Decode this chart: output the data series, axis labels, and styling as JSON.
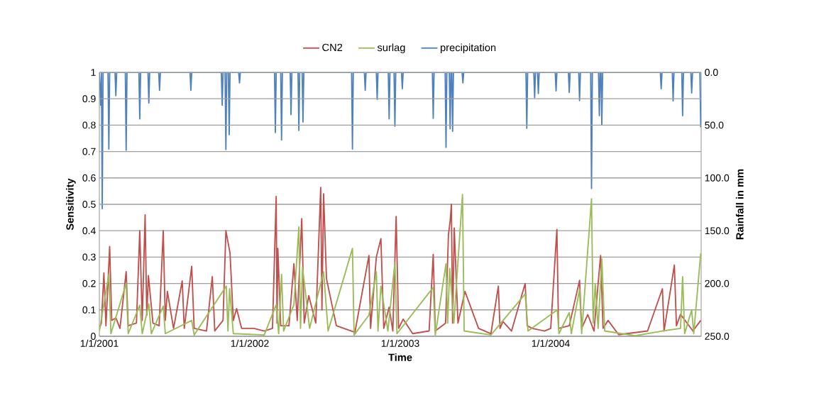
{
  "chart_data": {
    "type": "line",
    "xlabel": "Time",
    "ylabel": "Sensitivity",
    "y2label": "Rainfall in mm",
    "xlim": [
      "2001-01-01",
      "2004-12-31"
    ],
    "xticks": [
      {
        "value": "2001-01-01",
        "label": "1/1/2001"
      },
      {
        "value": "2002-01-01",
        "label": "1/1/2002"
      },
      {
        "value": "2003-01-01",
        "label": "1/1/2003"
      },
      {
        "value": "2004-01-01",
        "label": "1/1/2004"
      }
    ],
    "ylim": [
      0,
      1
    ],
    "yticks": [
      0,
      0.1,
      0.2,
      0.3,
      0.4,
      0.5,
      0.6,
      0.7,
      0.8,
      0.9,
      1
    ],
    "y2lim": [
      250,
      0
    ],
    "y2ticks": [
      {
        "value": 0,
        "label": "0.0"
      },
      {
        "value": 50,
        "label": "50.0"
      },
      {
        "value": 100,
        "label": "100.0"
      },
      {
        "value": 150,
        "label": "150.0"
      },
      {
        "value": 200,
        "label": "200.0"
      },
      {
        "value": 250,
        "label": "250.0"
      }
    ],
    "grid": "y",
    "legend": "top",
    "marker": "none",
    "line_style": "solid",
    "series": [
      {
        "name": "CN2",
        "color": "#c0504d",
        "x": [
          "2001-01-01",
          "2001-01-06",
          "2001-01-12",
          "2001-01-17",
          "2001-01-26",
          "2001-01-31",
          "2001-02-10",
          "2001-02-20",
          "2001-03-07",
          "2001-03-12",
          "2001-04-01",
          "2001-04-09",
          "2001-04-15",
          "2001-04-22",
          "2001-04-26",
          "2001-04-30",
          "2001-05-11",
          "2001-05-26",
          "2001-06-05",
          "2001-06-10",
          "2001-06-15",
          "2001-06-30",
          "2001-07-21",
          "2001-07-26",
          "2001-08-13",
          "2001-08-19",
          "2001-09-18",
          "2001-10-02",
          "2001-10-08",
          "2001-10-28",
          "2001-11-04",
          "2001-11-09",
          "2001-11-14",
          "2001-11-22",
          "2001-11-30",
          "2001-12-12",
          "2002-01-11",
          "2002-02-05",
          "2002-02-25",
          "2002-03-06",
          "2002-03-08",
          "2002-03-10",
          "2002-03-17",
          "2002-04-06",
          "2002-04-18",
          "2002-04-26",
          "2002-05-07",
          "2002-05-13",
          "2002-05-24",
          "2002-06-10",
          "2002-06-22",
          "2002-06-25",
          "2002-06-29",
          "2002-07-06",
          "2002-07-30",
          "2002-09-13",
          "2002-10-17",
          "2002-10-21",
          "2002-11-04",
          "2002-11-08",
          "2002-11-15",
          "2002-11-22",
          "2002-12-05",
          "2002-12-14",
          "2002-12-22",
          "2002-12-28",
          "2003-01-08",
          "2003-01-31",
          "2003-03-12",
          "2003-03-22",
          "2003-03-27",
          "2003-04-21",
          "2003-04-28",
          "2003-05-02",
          "2003-05-05",
          "2003-05-08",
          "2003-05-12",
          "2003-05-21",
          "2003-06-07",
          "2003-07-10",
          "2003-08-09",
          "2003-08-27",
          "2003-08-31",
          "2003-09-07",
          "2003-09-28",
          "2003-10-31",
          "2003-11-05",
          "2003-11-17",
          "2003-12-17",
          "2004-01-01",
          "2004-01-16",
          "2004-01-20",
          "2004-02-15",
          "2004-03-11",
          "2004-03-16",
          "2004-03-31",
          "2004-04-15",
          "2004-05-01",
          "2004-05-07",
          "2004-05-19",
          "2004-06-14",
          "2004-08-23",
          "2004-09-28",
          "2004-10-02",
          "2004-10-27",
          "2004-11-01",
          "2004-11-11",
          "2004-12-11",
          "2004-12-30"
        ],
        "values": [
          0.03,
          0.05,
          0.24,
          0.04,
          0.34,
          0.06,
          0.07,
          0.03,
          0.245,
          0.04,
          0.05,
          0.4,
          0.06,
          0.46,
          0.08,
          0.23,
          0.05,
          0.04,
          0.4,
          0.06,
          0.17,
          0.03,
          0.21,
          0.03,
          0.265,
          0.03,
          0.02,
          0.226,
          0.02,
          0.06,
          0.4,
          null,
          0.315,
          0.06,
          0.105,
          0.03,
          0.03,
          0.02,
          0.03,
          0.53,
          0.05,
          0.333,
          0.04,
          0.04,
          0.275,
          0.06,
          0.446,
          0.05,
          0.154,
          0.05,
          0.564,
          0.1,
          0.54,
          0.218,
          0.04,
          0.015,
          0.306,
          0.03,
          0.3,
          null,
          0.37,
          0.03,
          0.11,
          0.02,
          0.454,
          0.03,
          0.065,
          0.01,
          0.02,
          0.31,
          0.02,
          0.05,
          0.387,
          0.436,
          0.5,
          0.05,
          0.41,
          0.05,
          0.17,
          0.03,
          0.01,
          0.19,
          0.03,
          0.056,
          0.02,
          0.2,
          0.04,
          0.03,
          0.02,
          0.03,
          0.405,
          0.03,
          0.04,
          0.212,
          0.03,
          0.082,
          0.02,
          0.306,
          0.03,
          0.06,
          0.006,
          0.02,
          0.18,
          0.02,
          0.27,
          0.04,
          0.083,
          0.02,
          0.06
        ]
      },
      {
        "name": "surlag",
        "color": "#9bbb59",
        "x": [
          "2001-01-01",
          "2001-01-24",
          "2001-01-29",
          "2001-03-07",
          "2001-03-12",
          "2001-04-09",
          "2001-04-15",
          "2001-05-01",
          "2001-05-07",
          "2001-06-05",
          "2001-06-10",
          "2001-08-13",
          "2001-08-19",
          "2001-11-05",
          "2001-11-09",
          "2001-11-13",
          "2001-11-22",
          "2002-02-05",
          "2002-03-06",
          "2002-03-12",
          "2002-03-19",
          "2002-03-24",
          "2002-04-18",
          "2002-04-30",
          "2002-05-04",
          "2002-05-09",
          "2002-05-26",
          "2002-06-29",
          "2002-07-10",
          "2002-09-07",
          "2002-09-11",
          "2002-10-17",
          "2002-11-04",
          "2002-11-08",
          "2002-11-15",
          "2002-12-02",
          "2002-12-19",
          "2002-12-24",
          "2003-03-22",
          "2003-03-27",
          "2003-04-22",
          "2003-04-26",
          "2003-05-01",
          "2003-05-11",
          "2003-06-01",
          "2003-06-05",
          "2003-08-09",
          "2003-10-31",
          "2003-11-07",
          "2004-01-17",
          "2004-01-21",
          "2004-02-15",
          "2004-02-20",
          "2004-03-11",
          "2004-03-16",
          "2004-04-09",
          "2004-04-13",
          "2004-04-18",
          "2004-04-25",
          "2004-05-04",
          "2004-05-11",
          "2004-07-24",
          "2004-09-28",
          "2004-11-11",
          "2004-11-16",
          "2004-11-21",
          "2004-12-08",
          "2004-12-13",
          "2004-12-30"
        ],
        "values": [
          0.02,
          0.235,
          0.01,
          0.2,
          0.01,
          0.118,
          0.01,
          0.123,
          0.01,
          0.114,
          0.01,
          0.06,
          0.005,
          0.19,
          0.02,
          0.18,
          0.01,
          0.005,
          0.12,
          0.01,
          0.235,
          0.02,
          0.12,
          0.414,
          0.03,
          0.26,
          0.03,
          0.244,
          0.02,
          0.333,
          0.005,
          0.08,
          0.244,
          0.02,
          0.19,
          0.02,
          0.28,
          0.01,
          0.185,
          0.005,
          0.275,
          0.05,
          0.257,
          0.05,
          0.537,
          0.02,
          0.005,
          0.16,
          0.02,
          0.1,
          0.01,
          0.09,
          0.01,
          0.177,
          0.01,
          0.521,
          0.05,
          0.2,
          0.03,
          0.293,
          0.02,
          0.002,
          0.02,
          0.03,
          0.226,
          0.01,
          0.1,
          0.01,
          0.315
        ]
      },
      {
        "name": "precipitation",
        "color": "#4f81bd",
        "axis": "y2",
        "x": [
          "2001-01-01",
          "2001-01-04",
          "2001-01-06",
          "2001-01-08",
          "2001-01-10",
          "2001-01-22",
          "2001-01-24",
          "2001-01-26",
          "2001-02-08",
          "2001-02-10",
          "2001-02-12",
          "2001-03-05",
          "2001-03-07",
          "2001-03-09",
          "2001-04-07",
          "2001-04-09",
          "2001-04-11",
          "2001-04-29",
          "2001-05-01",
          "2001-05-03",
          "2001-05-25",
          "2001-05-27",
          "2001-05-29",
          "2001-08-09",
          "2001-08-11",
          "2001-08-13",
          "2001-10-24",
          "2001-10-26",
          "2001-10-28",
          "2001-11-02",
          "2001-11-04",
          "2001-11-06",
          "2001-11-10",
          "2001-11-12",
          "2001-11-14",
          "2001-12-05",
          "2001-12-07",
          "2001-12-09",
          "2002-03-02",
          "2002-03-04",
          "2002-03-06",
          "2002-03-17",
          "2002-03-19",
          "2002-03-21",
          "2002-04-09",
          "2002-04-11",
          "2002-04-13",
          "2002-04-28",
          "2002-04-30",
          "2002-05-02",
          "2002-05-08",
          "2002-05-10",
          "2002-05-12",
          "2002-09-05",
          "2002-09-07",
          "2002-09-09",
          "2002-10-06",
          "2002-10-08",
          "2002-10-10",
          "2002-11-04",
          "2002-11-06",
          "2002-11-08",
          "2002-12-03",
          "2002-12-05",
          "2002-12-07",
          "2002-12-17",
          "2002-12-19",
          "2002-12-21",
          "2003-01-04",
          "2003-01-06",
          "2003-01-08",
          "2003-03-20",
          "2003-03-22",
          "2003-03-24",
          "2003-04-20",
          "2003-04-22",
          "2003-04-24",
          "2003-04-30",
          "2003-05-02",
          "2003-05-04",
          "2003-05-06",
          "2003-05-08",
          "2003-05-10",
          "2003-05-31",
          "2003-06-02",
          "2003-06-04",
          "2003-11-02",
          "2003-11-04",
          "2003-11-06",
          "2003-11-21",
          "2003-11-23",
          "2003-11-25",
          "2003-11-30",
          "2003-12-02",
          "2003-12-04",
          "2004-01-12",
          "2004-01-14",
          "2004-01-16",
          "2004-02-13",
          "2004-02-15",
          "2004-02-17",
          "2004-03-09",
          "2004-03-11",
          "2004-03-13",
          "2004-04-07",
          "2004-04-09",
          "2004-04-11",
          "2004-04-26",
          "2004-04-28",
          "2004-04-30",
          "2004-05-02",
          "2004-05-04",
          "2004-05-06",
          "2004-09-23",
          "2004-09-25",
          "2004-09-27",
          "2004-10-22",
          "2004-10-24",
          "2004-10-26",
          "2004-11-14",
          "2004-11-16",
          "2004-11-18",
          "2004-12-06",
          "2004-12-08",
          "2004-12-10",
          "2004-12-28",
          "2004-12-30"
        ],
        "values": [
          0,
          31,
          0,
          129,
          0,
          0,
          72.6,
          0,
          0,
          22,
          0,
          0,
          73.7,
          0,
          0,
          44,
          0,
          0,
          29,
          0,
          0,
          17,
          0,
          0,
          17,
          0,
          0,
          31,
          0,
          0,
          73,
          0,
          0,
          59,
          0,
          0,
          10,
          0,
          0,
          57,
          0,
          0,
          64,
          0,
          0,
          40,
          0,
          0,
          55,
          0,
          0,
          47,
          0,
          0,
          72.6,
          0,
          0,
          17,
          0,
          0,
          25.5,
          0,
          0,
          44,
          0,
          0,
          51,
          0,
          0,
          15.5,
          0,
          0,
          43.5,
          0,
          0,
          71,
          0,
          0,
          53.5,
          0,
          0,
          55.8,
          0,
          0,
          10,
          0,
          0,
          53,
          0,
          0,
          24,
          0,
          0,
          20,
          0,
          0,
          17.5,
          0,
          0,
          19,
          0,
          0,
          26.7,
          0,
          0,
          110,
          0,
          0,
          41,
          0,
          0,
          49.7,
          0,
          0,
          15.5,
          0,
          0,
          27,
          0,
          0,
          41,
          0,
          0,
          19.5,
          0,
          0,
          52
        ]
      }
    ]
  }
}
